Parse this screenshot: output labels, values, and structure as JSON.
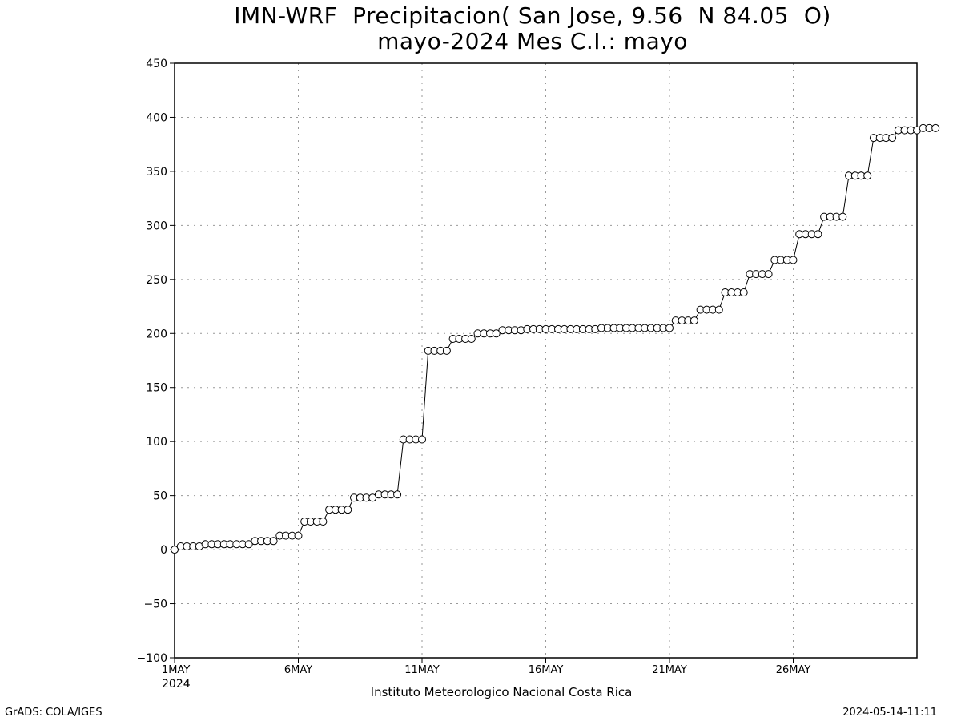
{
  "title_line1": "IMN-WRF  Precipitacion( San Jose, 9.56  N 84.05  O)",
  "title_line2": "mayo-2024 Mes C.I.: mayo",
  "footer_left": "GrADS: COLA/IGES",
  "footer_right": "2024-05-14-11:11",
  "xlabel": "Instituto Meteorologico Nacional Costa Rica",
  "chart_data": {
    "type": "line",
    "ylim": [
      -100,
      450
    ],
    "yticks": [
      -100,
      -50,
      0,
      50,
      100,
      150,
      200,
      250,
      300,
      350,
      400,
      450
    ],
    "xlim": [
      0,
      30
    ],
    "xticks": [
      {
        "x": 0,
        "label": "1MAY",
        "sublabel": "2024"
      },
      {
        "x": 5,
        "label": "6MAY"
      },
      {
        "x": 10,
        "label": "11MAY"
      },
      {
        "x": 15,
        "label": "16MAY"
      },
      {
        "x": 20,
        "label": "21MAY"
      },
      {
        "x": 25,
        "label": "26MAY"
      }
    ],
    "grid": true,
    "x_step_days": 0.25,
    "series": [
      {
        "values": [
          0,
          3,
          3,
          3,
          3,
          5,
          5,
          5,
          5,
          5,
          5,
          5,
          5,
          8,
          8,
          8,
          8,
          13,
          13,
          13,
          13,
          26,
          26,
          26,
          26,
          37,
          37,
          37,
          37,
          48,
          48,
          48,
          48,
          51,
          51,
          51,
          51,
          102,
          102,
          102,
          102,
          184,
          184,
          184,
          184,
          195,
          195,
          195,
          195,
          200,
          200,
          200,
          200,
          203,
          203,
          203,
          203,
          204,
          204,
          204,
          204,
          204,
          204,
          204,
          204,
          204,
          204,
          204,
          204,
          205,
          205,
          205,
          205,
          205,
          205,
          205,
          205,
          205,
          205,
          205,
          205,
          212,
          212,
          212,
          212,
          222,
          222,
          222,
          222,
          238,
          238,
          238,
          238,
          255,
          255,
          255,
          255,
          268,
          268,
          268,
          268,
          292,
          292,
          292,
          292,
          308,
          308,
          308,
          308,
          346,
          346,
          346,
          346,
          381,
          381,
          381,
          381,
          388,
          388,
          388,
          388,
          390,
          390,
          390
        ]
      }
    ]
  }
}
